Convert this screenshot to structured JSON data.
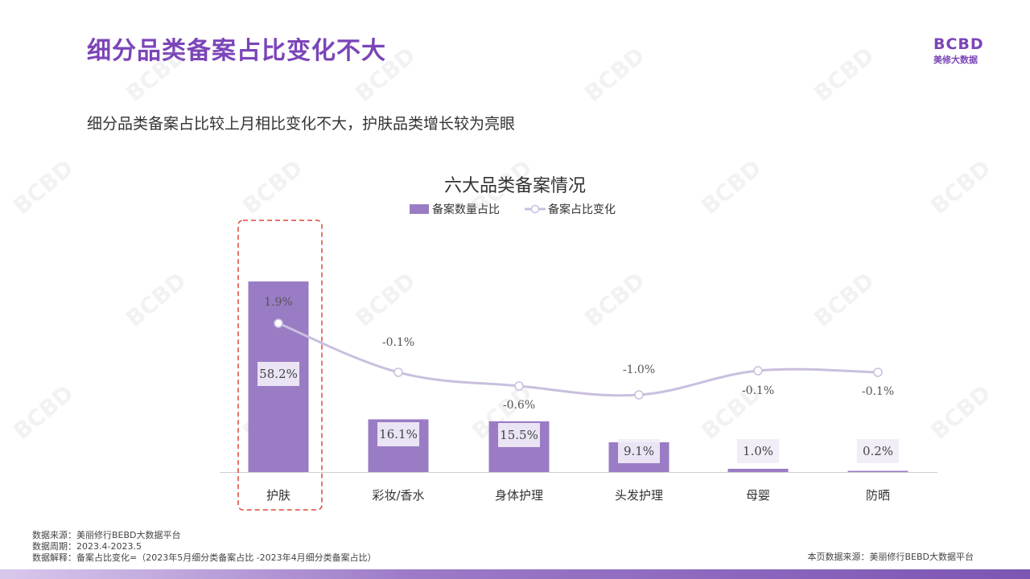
{
  "page": {
    "title": "细分品类备案占比变化不大",
    "subtitle": "细分品类备案占比较上月相比变化不大，护肤品类增长较为亮眼",
    "logo": {
      "mark": "BCBD",
      "text": "美修大数据",
      "watermark_icon": "bcbd-watermark"
    },
    "footer": {
      "source": "数据来源：美丽修行BEBD大数据平台",
      "period": "数据周期：2023.4-2023.5",
      "explanation": "数据解释：备案占比变化=（2023年5月细分类备案占比 -2023年4月细分类备案占比）",
      "page_source": "本页数据来源：美丽修行BEBD大数据平台"
    },
    "colors": {
      "title": "#7b45b8",
      "bar": "#9a7cc4",
      "line": "#c9bfdf",
      "highlight_box": "#e0463c"
    }
  },
  "chart_data": {
    "type": "bar",
    "title": "六大品类备案情况",
    "legend_position": "top-center",
    "categories": [
      "护肤",
      "彩妆/香水",
      "身体护理",
      "头发护理",
      "母婴",
      "防晒"
    ],
    "series": [
      {
        "name": "备案数量占比",
        "type": "bar",
        "values": [
          58.2,
          16.1,
          15.5,
          9.1,
          1.0,
          0.2
        ],
        "labels": [
          "58.2%",
          "16.1%",
          "15.5%",
          "9.1%",
          "1.0%",
          "0.2%"
        ]
      },
      {
        "name": "备案占比变化",
        "type": "line",
        "values": [
          1.9,
          -0.1,
          -0.6,
          -1.0,
          -0.1,
          -0.1
        ],
        "labels": [
          "1.9%",
          "-0.1%",
          "-0.6%",
          "-1.0%",
          "-0.1%",
          "-0.1%"
        ]
      }
    ],
    "highlight_category": "护肤",
    "grid": false
  }
}
